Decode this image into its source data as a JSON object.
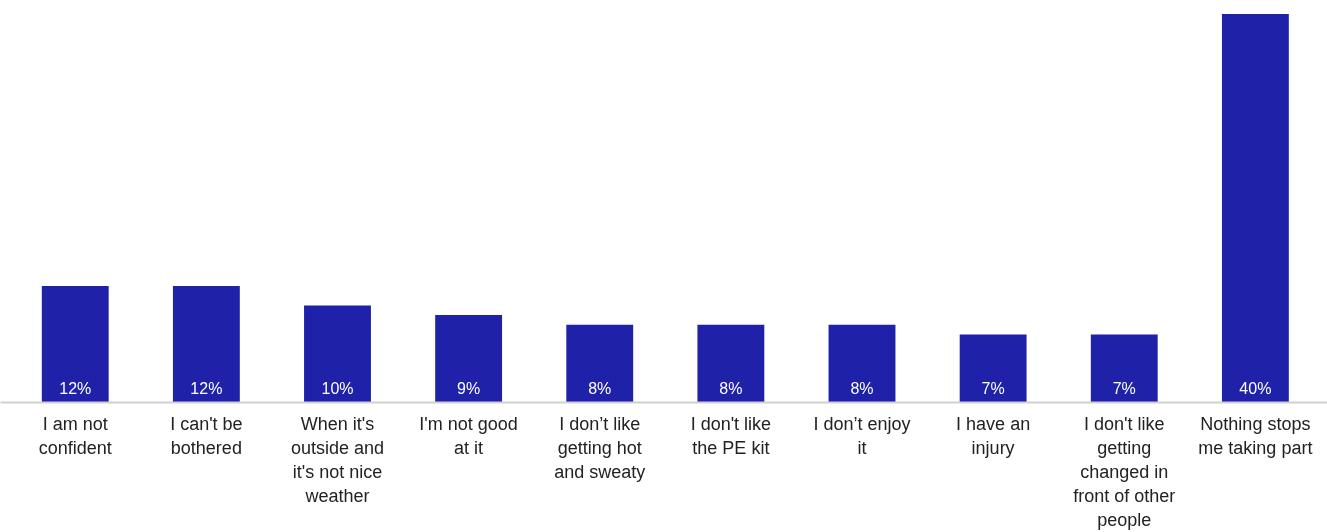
{
  "chart_data": {
    "type": "bar",
    "categories": [
      "I am not confident",
      "I can't be bothered",
      "When it's outside and it's not nice weather",
      "I'm not good at it",
      "I don’t like getting hot and sweaty",
      "I don't like the PE kit",
      "I don’t enjoy it",
      "I have an injury",
      "I don't like getting changed in front of other people",
      "Nothing stops me taking part"
    ],
    "values": [
      12,
      12,
      10,
      9,
      8,
      8,
      8,
      7,
      7,
      40
    ],
    "value_labels": [
      "12%",
      "12%",
      "10%",
      "9%",
      "8%",
      "8%",
      "8%",
      "7%",
      "7%",
      "40%"
    ],
    "color": "#1f21a8"
  }
}
